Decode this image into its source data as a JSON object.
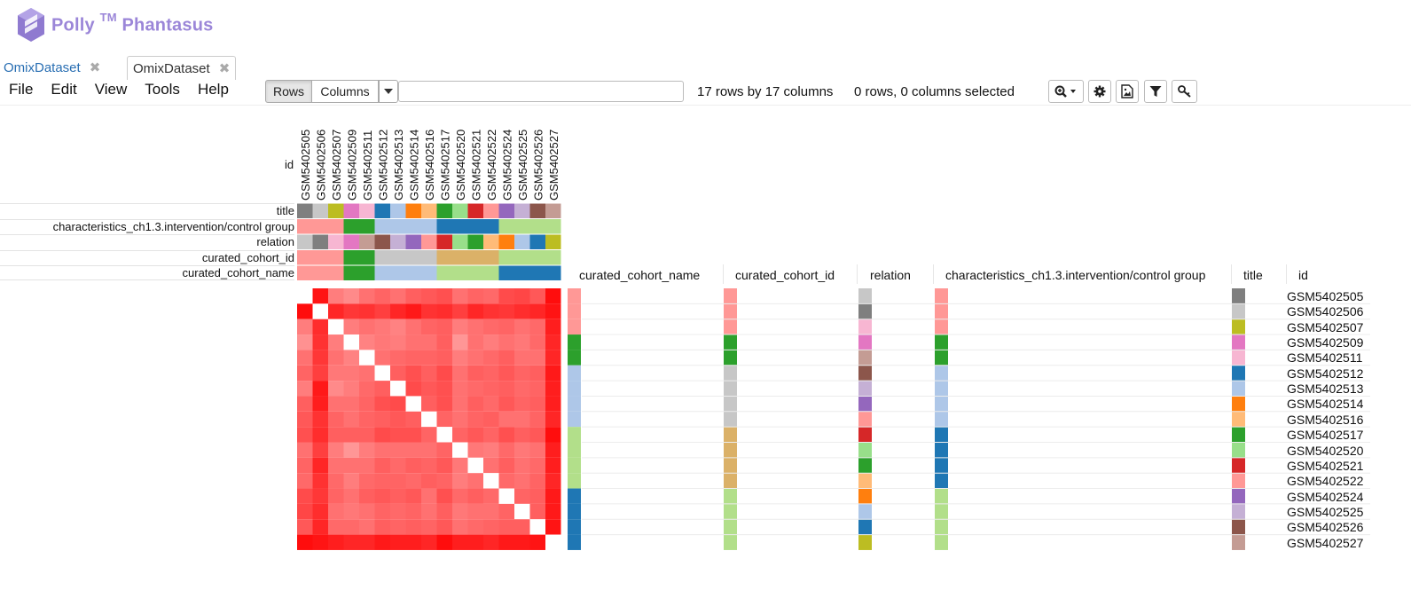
{
  "brand": {
    "name": "Polly",
    "tm": "TM",
    "product": "Phantasus"
  },
  "tabs": [
    {
      "label": "OmixDataset",
      "active": false
    },
    {
      "label": "OmixDataset",
      "active": true
    }
  ],
  "menu": [
    "File",
    "Edit",
    "View",
    "Tools",
    "Help"
  ],
  "toolbar": {
    "rows_label": "Rows",
    "columns_label": "Columns",
    "search_value": "",
    "dims_text": "17 rows by 17 columns",
    "selection_text": "0 rows, 0 columns selected",
    "icons": [
      "zoom-icon",
      "gear-icon",
      "image-icon",
      "filter-icon",
      "key-icon"
    ]
  },
  "annotation_rows": [
    "title",
    "characteristics_ch1.3.intervention/control group",
    "relation",
    "curated_cohort_id",
    "curated_cohort_name"
  ],
  "column_id_label": "id",
  "row_annotation_headers": [
    "curated_cohort_name",
    "curated_cohort_id",
    "relation",
    "characteristics_ch1.3.intervention/control group",
    "title",
    "id"
  ],
  "ids": [
    "GSM5402505",
    "GSM5402506",
    "GSM5402507",
    "GSM5402509",
    "GSM5402511",
    "GSM5402512",
    "GSM5402513",
    "GSM5402514",
    "GSM5402516",
    "GSM5402517",
    "GSM5402520",
    "GSM5402521",
    "GSM5402522",
    "GSM5402524",
    "GSM5402525",
    "GSM5402526",
    "GSM5402527"
  ],
  "title_colors": [
    "#7f7f7f",
    "#c7c7c7",
    "#bcbd22",
    "#e377c2",
    "#f7b6d2",
    "#1f77b4",
    "#aec7e8",
    "#ff7f0e",
    "#ffbb78",
    "#2ca02c",
    "#98df8a",
    "#d62728",
    "#ff9896",
    "#9467bd",
    "#c5b0d5",
    "#8c564b",
    "#c49c94"
  ],
  "intervention_colors": [
    "#ff9896",
    "#ff9896",
    "#ff9896",
    "#2ca02c",
    "#2ca02c",
    "#aec7e8",
    "#aec7e8",
    "#aec7e8",
    "#aec7e8",
    "#1f77b4",
    "#1f77b4",
    "#1f77b4",
    "#1f77b4",
    "#b2df8a",
    "#b2df8a",
    "#b2df8a",
    "#b2df8a"
  ],
  "relation_colors": [
    "#c7c7c7",
    "#7f7f7f",
    "#f7b6d2",
    "#e377c2",
    "#c49c94",
    "#8c564b",
    "#c5b0d5",
    "#9467bd",
    "#ff9896",
    "#d62728",
    "#98df8a",
    "#2ca02c",
    "#ffbb78",
    "#ff7f0e",
    "#aec7e8",
    "#1f77b4",
    "#bcbd22"
  ],
  "cohort_id_colors": [
    "#ff9896",
    "#ff9896",
    "#ff9896",
    "#2ca02c",
    "#2ca02c",
    "#c7c7c7",
    "#c7c7c7",
    "#c7c7c7",
    "#c7c7c7",
    "#dbb168",
    "#dbb168",
    "#dbb168",
    "#dbb168",
    "#b2df8a",
    "#b2df8a",
    "#b2df8a",
    "#b2df8a"
  ],
  "cohort_name_colors": [
    "#ff9896",
    "#ff9896",
    "#ff9896",
    "#2ca02c",
    "#2ca02c",
    "#aec7e8",
    "#aec7e8",
    "#aec7e8",
    "#aec7e8",
    "#b2df8a",
    "#b2df8a",
    "#b2df8a",
    "#b2df8a",
    "#1f77b4",
    "#1f77b4",
    "#1f77b4",
    "#1f77b4"
  ],
  "chart_data": {
    "type": "heatmap",
    "rows": 17,
    "columns": 17,
    "diagonal": "white",
    "values": [
      [
        1.0,
        0.92,
        0.5,
        0.45,
        0.55,
        0.6,
        0.55,
        0.62,
        0.65,
        0.68,
        0.55,
        0.6,
        0.58,
        0.7,
        0.72,
        0.65,
        0.95
      ],
      [
        0.95,
        1.0,
        0.85,
        0.78,
        0.8,
        0.75,
        0.85,
        0.9,
        0.8,
        0.82,
        0.75,
        0.85,
        0.8,
        0.78,
        0.82,
        0.85,
        0.92
      ],
      [
        0.5,
        0.82,
        1.0,
        0.5,
        0.55,
        0.52,
        0.48,
        0.55,
        0.6,
        0.62,
        0.5,
        0.55,
        0.58,
        0.6,
        0.55,
        0.58,
        0.88
      ],
      [
        0.42,
        0.8,
        0.5,
        1.0,
        0.48,
        0.52,
        0.5,
        0.55,
        0.55,
        0.62,
        0.4,
        0.55,
        0.5,
        0.55,
        0.52,
        0.58,
        0.85
      ],
      [
        0.55,
        0.78,
        0.55,
        0.48,
        1.0,
        0.55,
        0.58,
        0.6,
        0.6,
        0.62,
        0.5,
        0.55,
        0.58,
        0.62,
        0.55,
        0.55,
        0.85
      ],
      [
        0.6,
        0.75,
        0.52,
        0.52,
        0.55,
        1.0,
        0.62,
        0.68,
        0.62,
        0.7,
        0.55,
        0.62,
        0.6,
        0.65,
        0.6,
        0.62,
        0.9
      ],
      [
        0.5,
        0.9,
        0.45,
        0.5,
        0.58,
        0.62,
        1.0,
        0.7,
        0.65,
        0.68,
        0.55,
        0.58,
        0.6,
        0.62,
        0.58,
        0.6,
        0.88
      ],
      [
        0.62,
        0.88,
        0.55,
        0.55,
        0.6,
        0.68,
        0.7,
        1.0,
        0.62,
        0.68,
        0.55,
        0.62,
        0.58,
        0.65,
        0.6,
        0.62,
        0.88
      ],
      [
        0.65,
        0.8,
        0.6,
        0.55,
        0.6,
        0.62,
        0.65,
        0.62,
        1.0,
        0.6,
        0.55,
        0.6,
        0.62,
        0.55,
        0.55,
        0.6,
        0.85
      ],
      [
        0.68,
        0.82,
        0.62,
        0.62,
        0.62,
        0.7,
        0.68,
        0.68,
        0.6,
        1.0,
        0.6,
        0.65,
        0.6,
        0.68,
        0.62,
        0.65,
        0.95
      ],
      [
        0.55,
        0.75,
        0.5,
        0.4,
        0.5,
        0.55,
        0.55,
        0.55,
        0.55,
        0.6,
        1.0,
        0.52,
        0.5,
        0.58,
        0.52,
        0.55,
        0.88
      ],
      [
        0.6,
        0.85,
        0.55,
        0.55,
        0.55,
        0.62,
        0.58,
        0.62,
        0.6,
        0.65,
        0.52,
        1.0,
        0.55,
        0.62,
        0.55,
        0.58,
        0.88
      ],
      [
        0.58,
        0.8,
        0.58,
        0.5,
        0.58,
        0.6,
        0.6,
        0.58,
        0.62,
        0.6,
        0.5,
        0.55,
        1.0,
        0.58,
        0.55,
        0.6,
        0.85
      ],
      [
        0.7,
        0.78,
        0.6,
        0.55,
        0.62,
        0.65,
        0.62,
        0.65,
        0.55,
        0.68,
        0.58,
        0.62,
        0.58,
        1.0,
        0.6,
        0.62,
        0.9
      ],
      [
        0.72,
        0.82,
        0.55,
        0.52,
        0.55,
        0.6,
        0.58,
        0.6,
        0.55,
        0.62,
        0.52,
        0.55,
        0.55,
        0.6,
        1.0,
        0.62,
        0.9
      ],
      [
        0.65,
        0.85,
        0.58,
        0.58,
        0.55,
        0.62,
        0.6,
        0.62,
        0.6,
        0.65,
        0.55,
        0.58,
        0.6,
        0.62,
        0.62,
        1.0,
        0.92
      ],
      [
        0.95,
        0.92,
        0.88,
        0.85,
        0.85,
        0.9,
        0.88,
        0.88,
        0.85,
        0.95,
        0.88,
        0.88,
        0.85,
        0.9,
        0.9,
        0.92,
        1.0
      ]
    ]
  }
}
